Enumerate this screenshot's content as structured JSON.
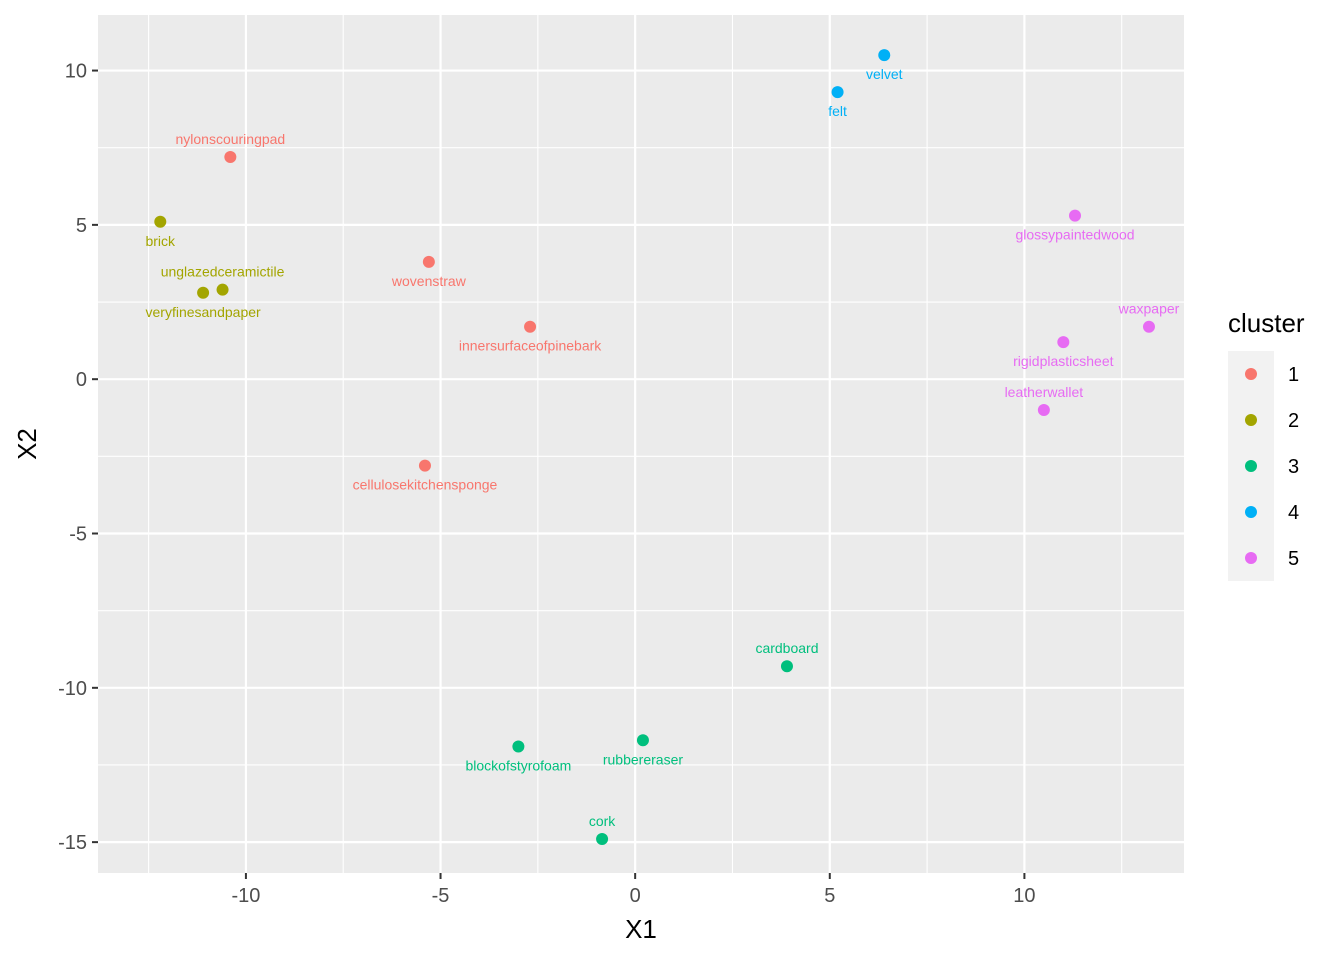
{
  "chart_data": {
    "type": "scatter",
    "xlabel": "X1",
    "ylabel": "X2",
    "xlim": [
      -13.8,
      14.1
    ],
    "ylim": [
      -16.0,
      11.8
    ],
    "xticks": [
      -10,
      -5,
      0,
      5,
      10
    ],
    "xtick_labels": [
      "-10",
      "-5",
      "0",
      "5",
      "10"
    ],
    "yticks": [
      -15,
      -10,
      -5,
      0,
      5,
      10
    ],
    "ytick_labels": [
      "-15",
      "-10",
      "-5",
      "0",
      "5",
      "10"
    ],
    "grid": true,
    "legend": {
      "title": "cluster",
      "placement": "right",
      "entries": [
        {
          "label": "1",
          "color": "#F8766D"
        },
        {
          "label": "2",
          "color": "#A3A500"
        },
        {
          "label": "3",
          "color": "#00BF7D"
        },
        {
          "label": "4",
          "color": "#00B0F6"
        },
        {
          "label": "5",
          "color": "#E76BF3"
        }
      ]
    },
    "points": [
      {
        "label": "nylonscouringpad",
        "x": -10.4,
        "y": 7.2,
        "cluster": "1",
        "label_pos": "above"
      },
      {
        "label": "wovenstraw",
        "x": -5.3,
        "y": 3.8,
        "cluster": "1",
        "label_pos": "below"
      },
      {
        "label": "innersurfaceofpinebark",
        "x": -2.7,
        "y": 1.7,
        "cluster": "1",
        "label_pos": "below"
      },
      {
        "label": "cellulosekitchensponge",
        "x": -5.4,
        "y": -2.8,
        "cluster": "1",
        "label_pos": "below"
      },
      {
        "label": "brick",
        "x": -12.2,
        "y": 5.1,
        "cluster": "2",
        "label_pos": "below"
      },
      {
        "label": "unglazedceramictile",
        "x": -10.6,
        "y": 2.9,
        "cluster": "2",
        "label_pos": "above"
      },
      {
        "label": "veryfinesandpaper",
        "x": -11.1,
        "y": 2.8,
        "cluster": "2",
        "label_pos": "below"
      },
      {
        "label": "cardboard",
        "x": 3.9,
        "y": -9.3,
        "cluster": "3",
        "label_pos": "above"
      },
      {
        "label": "blockofstyrofoam",
        "x": -3.0,
        "y": -11.9,
        "cluster": "3",
        "label_pos": "below"
      },
      {
        "label": "rubbereraser",
        "x": 0.2,
        "y": -11.7,
        "cluster": "3",
        "label_pos": "below"
      },
      {
        "label": "cork",
        "x": -0.85,
        "y": -14.9,
        "cluster": "3",
        "label_pos": "above"
      },
      {
        "label": "velvet",
        "x": 6.4,
        "y": 10.5,
        "cluster": "4",
        "label_pos": "below"
      },
      {
        "label": "felt",
        "x": 5.2,
        "y": 9.3,
        "cluster": "4",
        "label_pos": "below"
      },
      {
        "label": "glossypaintedwood",
        "x": 11.3,
        "y": 5.3,
        "cluster": "5",
        "label_pos": "below"
      },
      {
        "label": "waxpaper",
        "x": 13.2,
        "y": 1.7,
        "cluster": "5",
        "label_pos": "above"
      },
      {
        "label": "rigidplasticsheet",
        "x": 11.0,
        "y": 1.2,
        "cluster": "5",
        "label_pos": "below"
      },
      {
        "label": "leatherwallet",
        "x": 10.5,
        "y": -1.0,
        "cluster": "5",
        "label_pos": "above"
      }
    ]
  }
}
